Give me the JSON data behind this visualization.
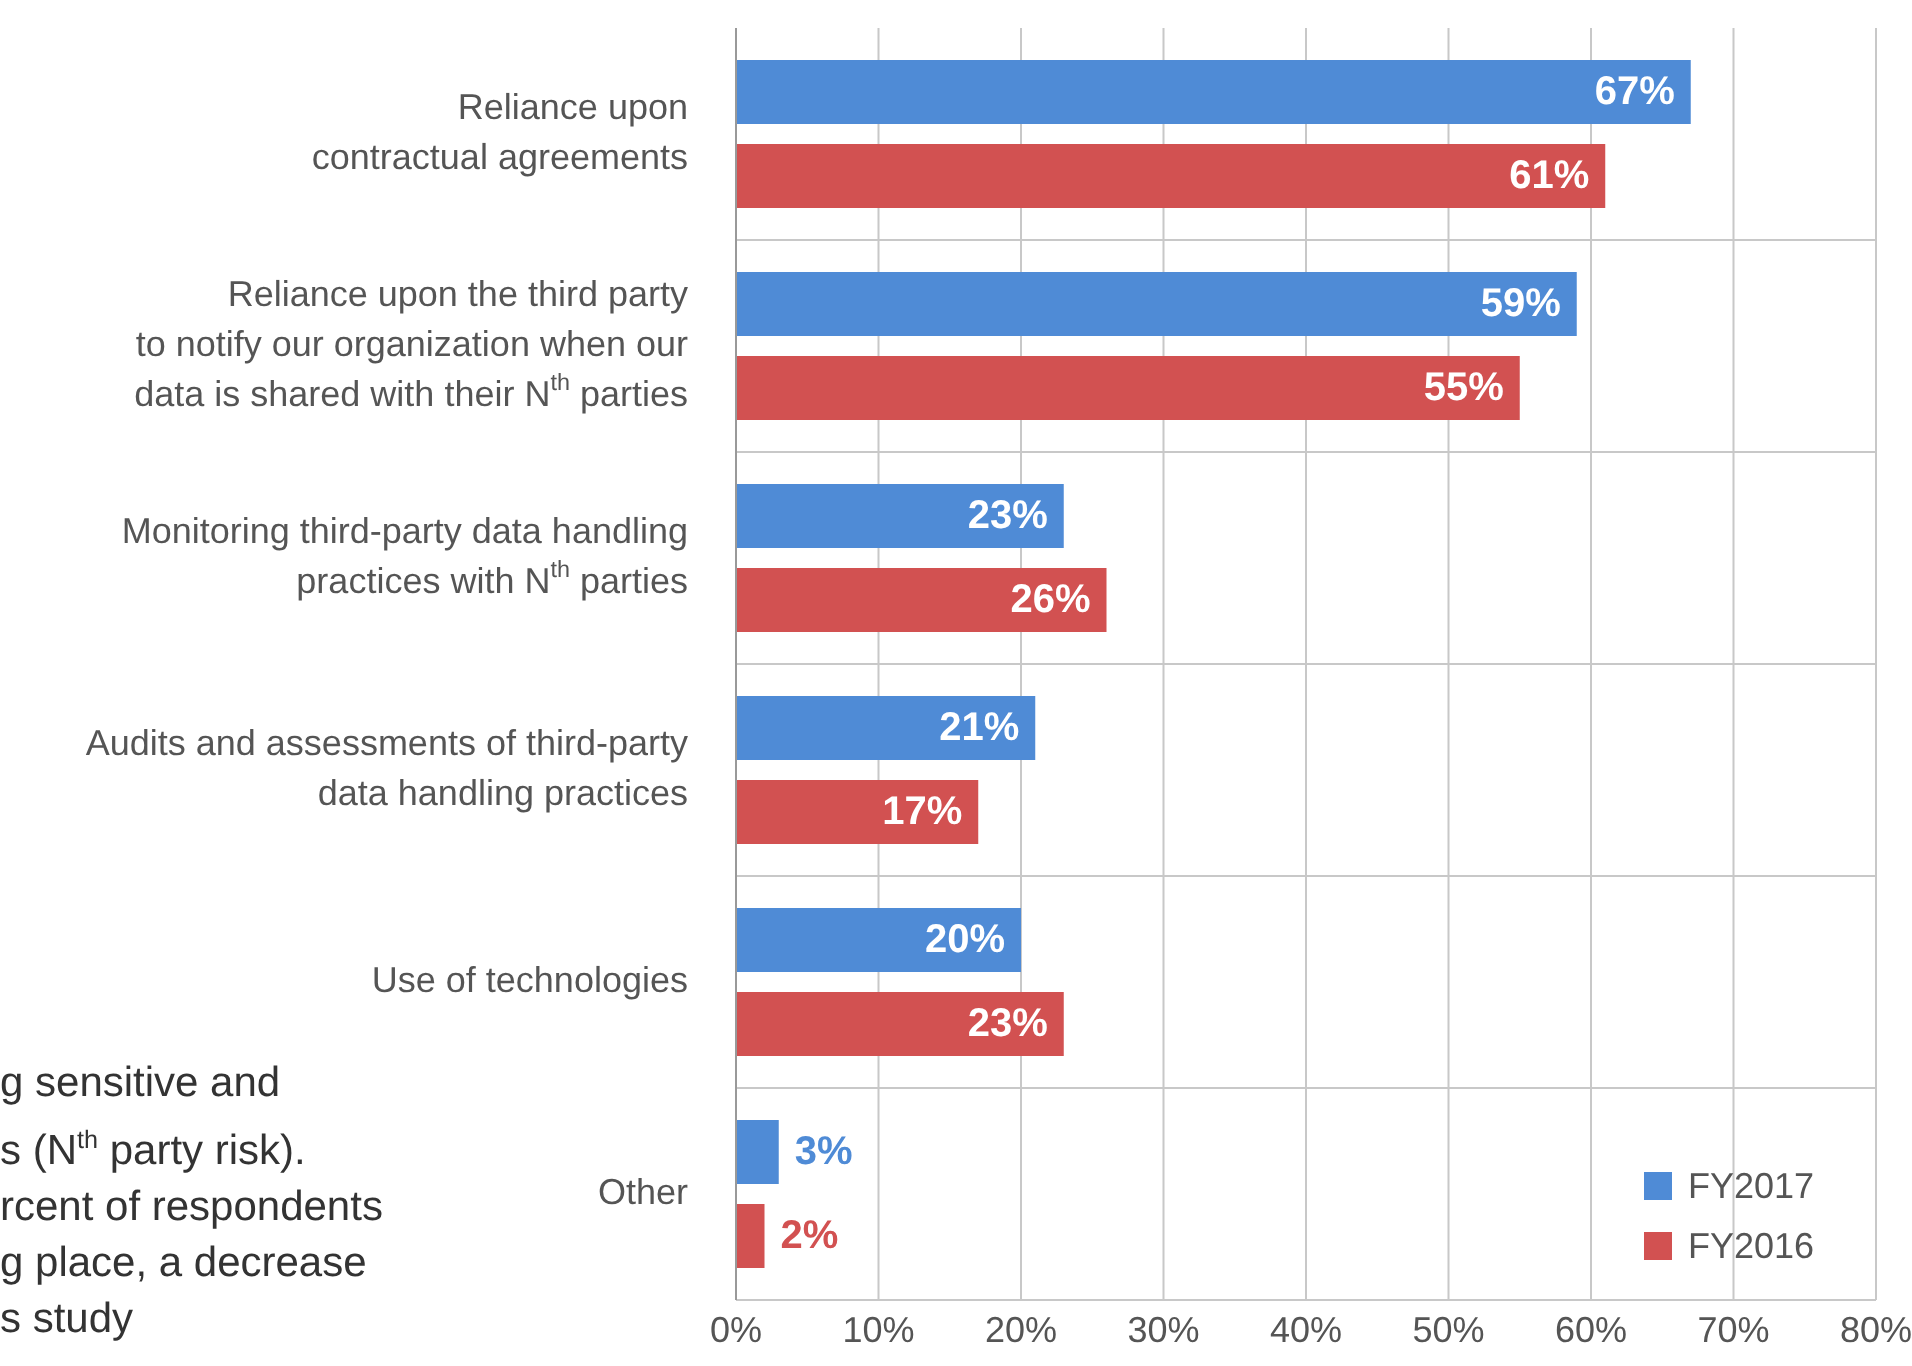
{
  "chart_data": {
    "type": "bar",
    "orientation": "horizontal",
    "categories": [
      "Reliance upon\ncontractual agreements",
      "Reliance upon the third party\nto notify our organization when our\ndata is shared with their N$^{th}$ parties",
      "Monitoring third-party data handling\npractices with N$^{th}$ parties",
      "Audits and assessments of third-party\ndata handling practices",
      "Use of technologies",
      "Other"
    ],
    "series": [
      {
        "name": "FY2017",
        "color": "#4f8bd6",
        "values": [
          67,
          59,
          23,
          21,
          20,
          3
        ],
        "value_labels": [
          "67%",
          "59%",
          "23%",
          "21%",
          "20%",
          "3%"
        ]
      },
      {
        "name": "FY2016",
        "color": "#d25151",
        "values": [
          61,
          55,
          26,
          17,
          23,
          2
        ],
        "value_labels": [
          "61%",
          "55%",
          "26%",
          "17%",
          "23%",
          "2%"
        ]
      }
    ],
    "xlim": [
      0,
      80
    ],
    "xticks": [
      {
        "value": 0,
        "label": "0%"
      },
      {
        "value": 10,
        "label": "10%"
      },
      {
        "value": 20,
        "label": "20%"
      },
      {
        "value": 30,
        "label": "30%"
      },
      {
        "value": 40,
        "label": "40%"
      },
      {
        "value": 50,
        "label": "50%"
      },
      {
        "value": 60,
        "label": "60%"
      },
      {
        "value": 70,
        "label": "70%"
      },
      {
        "value": 80,
        "label": "80%"
      }
    ],
    "grid": true,
    "legend": "bottom right",
    "annotations": [
      "g sensitive and",
      "s (N$^{th}$ party risk).",
      "rcent of respondents",
      "g place, a decrease",
      "s study"
    ]
  }
}
